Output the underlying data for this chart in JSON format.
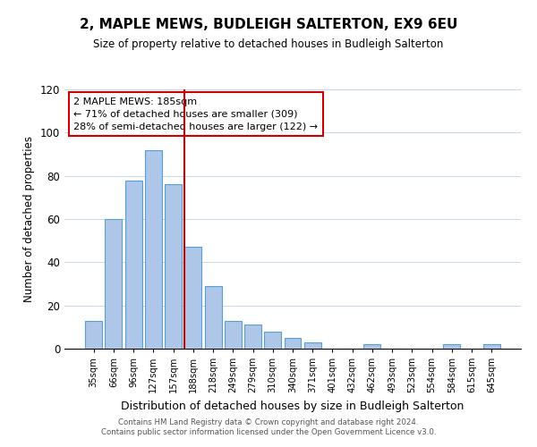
{
  "title": "2, MAPLE MEWS, BUDLEIGH SALTERTON, EX9 6EU",
  "subtitle": "Size of property relative to detached houses in Budleigh Salterton",
  "xlabel": "Distribution of detached houses by size in Budleigh Salterton",
  "ylabel": "Number of detached properties",
  "bar_labels": [
    "35sqm",
    "66sqm",
    "96sqm",
    "127sqm",
    "157sqm",
    "188sqm",
    "218sqm",
    "249sqm",
    "279sqm",
    "310sqm",
    "340sqm",
    "371sqm",
    "401sqm",
    "432sqm",
    "462sqm",
    "493sqm",
    "523sqm",
    "554sqm",
    "584sqm",
    "615sqm",
    "645sqm"
  ],
  "bar_values": [
    13,
    60,
    78,
    92,
    76,
    47,
    29,
    13,
    11,
    8,
    5,
    3,
    0,
    0,
    2,
    0,
    0,
    0,
    2,
    0,
    2
  ],
  "bar_color": "#aec6e8",
  "bar_edge_color": "#5a9fd4",
  "marker_index": 5,
  "marker_color": "#cc0000",
  "annotation_title": "2 MAPLE MEWS: 185sqm",
  "annotation_line1": "← 71% of detached houses are smaller (309)",
  "annotation_line2": "28% of semi-detached houses are larger (122) →",
  "annotation_box_color": "#cc0000",
  "ylim": [
    0,
    120
  ],
  "yticks": [
    0,
    20,
    40,
    60,
    80,
    100,
    120
  ],
  "footer1": "Contains HM Land Registry data © Crown copyright and database right 2024.",
  "footer2": "Contains public sector information licensed under the Open Government Licence v3.0."
}
